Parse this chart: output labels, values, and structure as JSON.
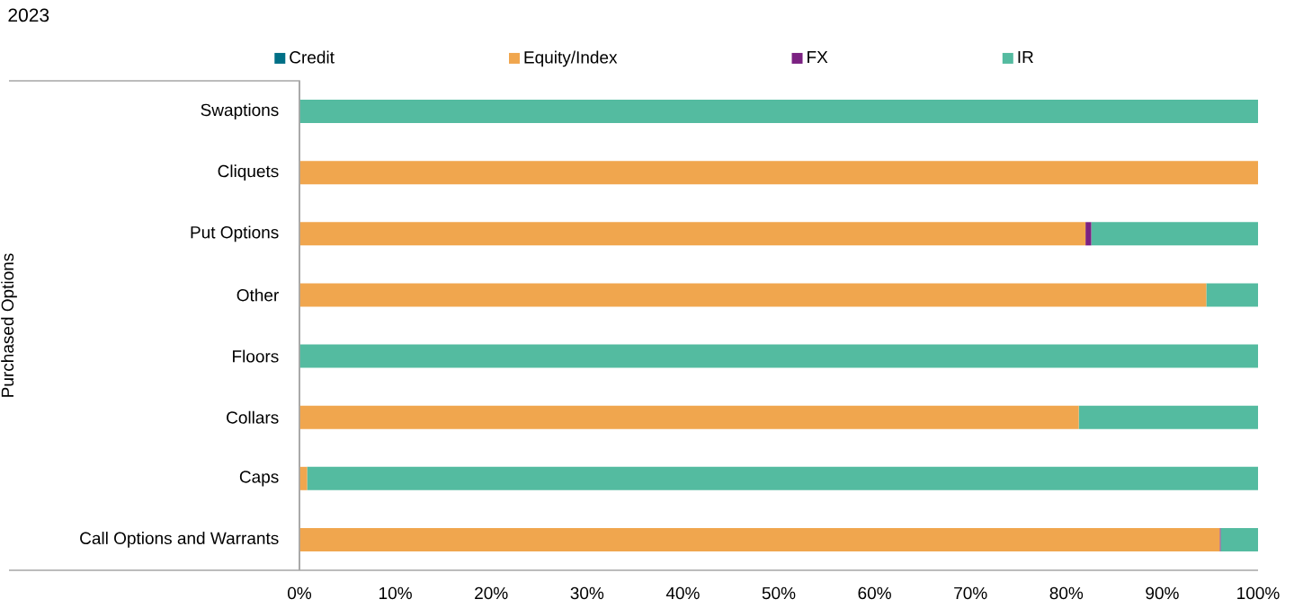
{
  "chart_data": {
    "type": "bar",
    "orientation": "horizontal",
    "stacked": true,
    "title": "2023",
    "ylabel": "Purchased Options",
    "categories": [
      "Swaptions",
      "Cliquets",
      "Put Options",
      "Other",
      "Floors",
      "Collars",
      "Caps",
      "Call Options and Warrants"
    ],
    "series": [
      {
        "name": "Credit",
        "color": "#006f86",
        "values": [
          0,
          0,
          0,
          0,
          0,
          0,
          0,
          0
        ]
      },
      {
        "name": "Equity/Index",
        "color": "#f0a64e",
        "values": [
          0,
          100,
          82.0,
          94.6,
          0,
          81.3,
          0.8,
          96.0
        ]
      },
      {
        "name": "FX",
        "color": "#7b2182",
        "values": [
          0,
          0,
          0.6,
          0,
          0,
          0,
          0,
          0.1
        ]
      },
      {
        "name": "IR",
        "color": "#54bba0",
        "values": [
          100,
          0,
          17.4,
          5.4,
          100,
          18.7,
          99.2,
          3.9
        ]
      }
    ],
    "xlim": [
      0,
      100
    ],
    "xticks": [
      {
        "value": 0,
        "label": "0%"
      },
      {
        "value": 10,
        "label": "10%"
      },
      {
        "value": 20,
        "label": "20%"
      },
      {
        "value": 30,
        "label": "30%"
      },
      {
        "value": 40,
        "label": "40%"
      },
      {
        "value": 50,
        "label": "50%"
      },
      {
        "value": 60,
        "label": "60%"
      },
      {
        "value": 70,
        "label": "70%"
      },
      {
        "value": 80,
        "label": "80%"
      },
      {
        "value": 90,
        "label": "90%"
      },
      {
        "value": 100,
        "label": "100%"
      }
    ],
    "legend": "top"
  }
}
